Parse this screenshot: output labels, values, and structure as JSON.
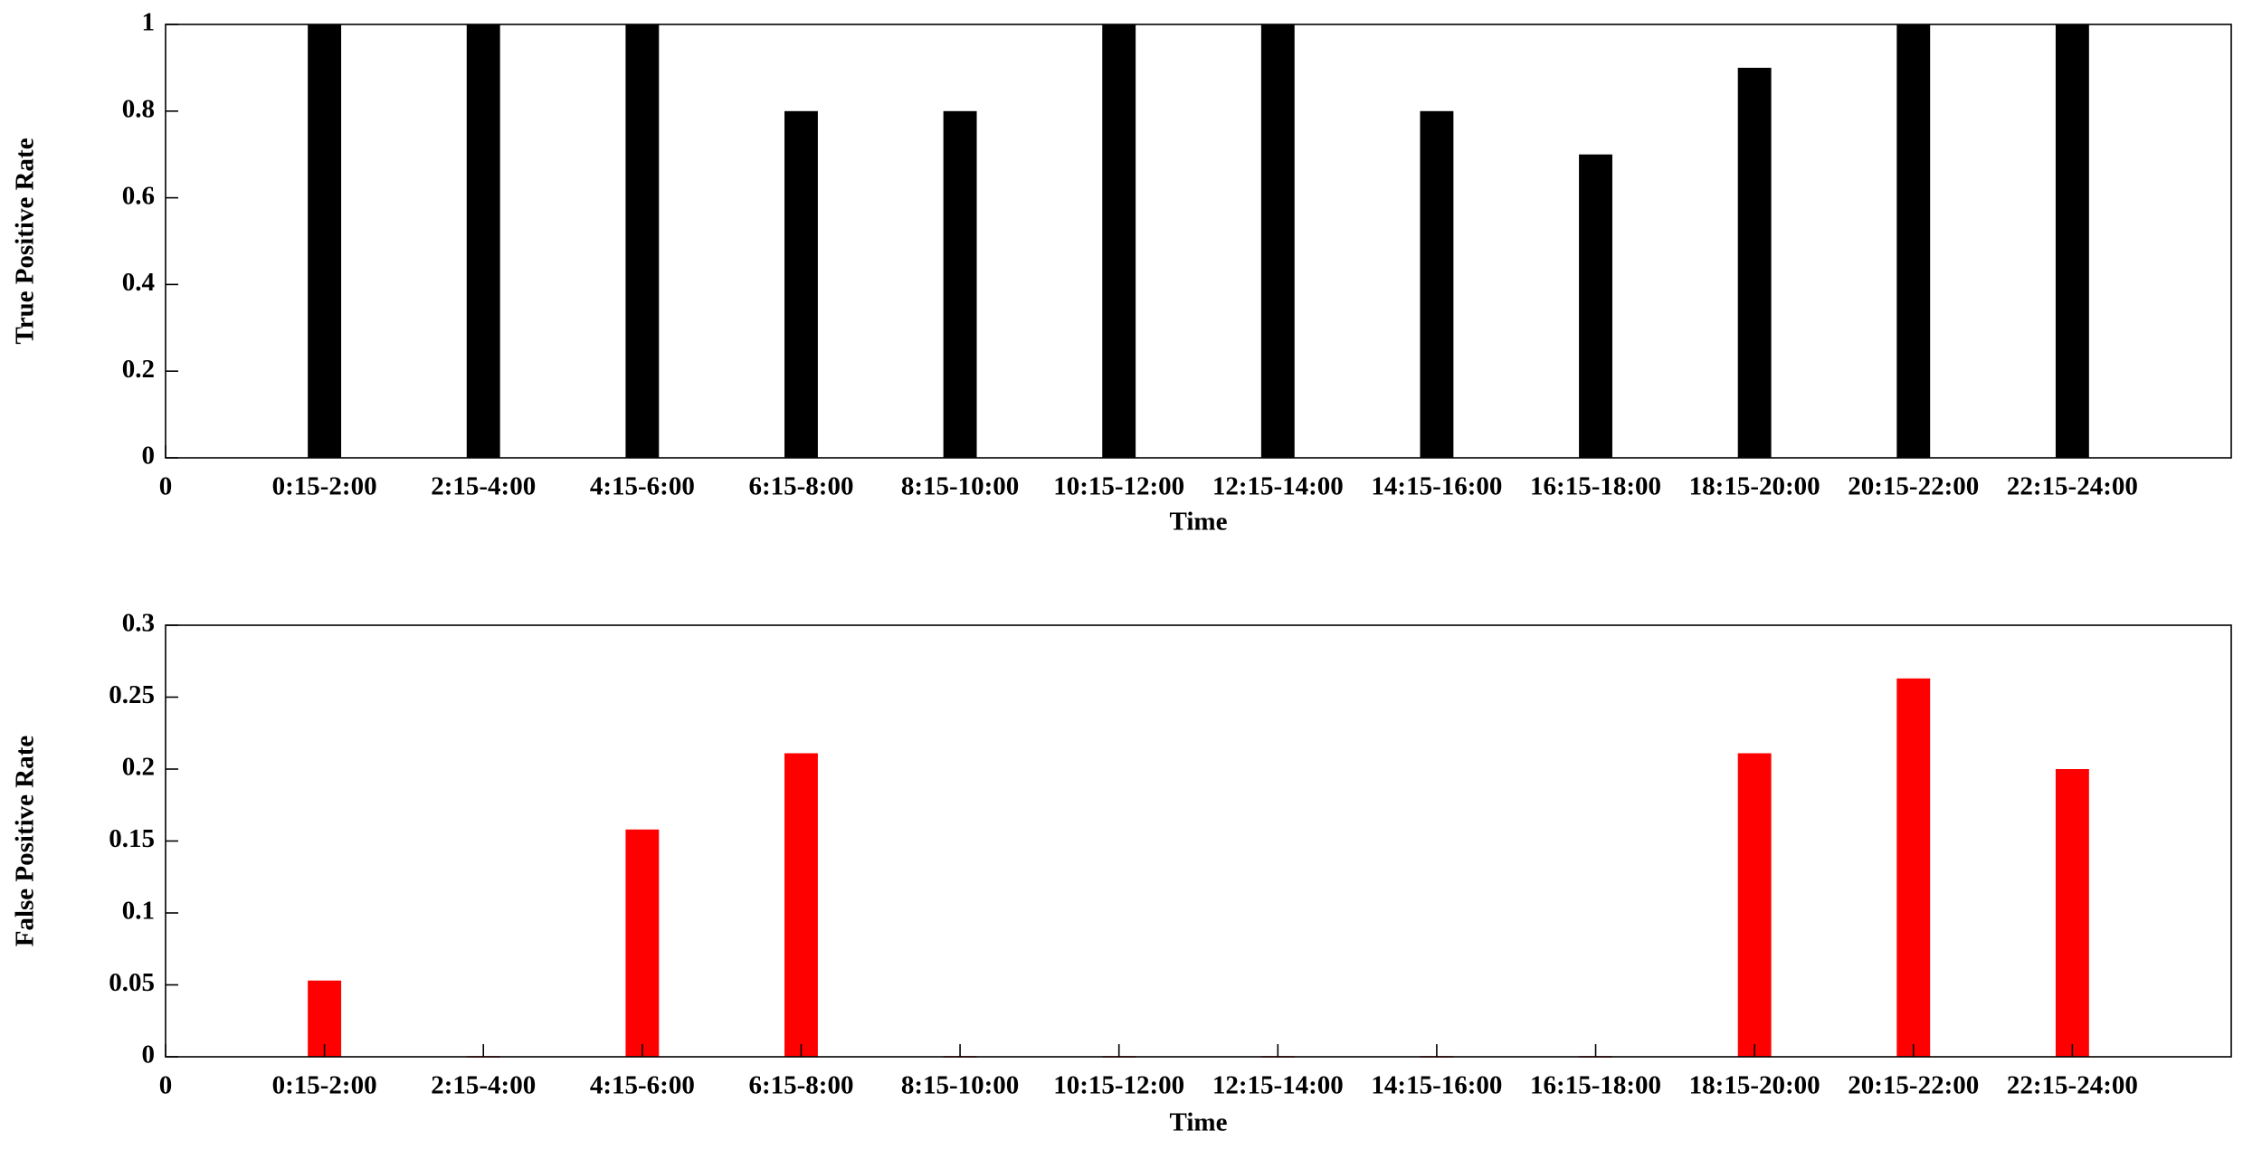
{
  "chart_data": [
    {
      "type": "bar",
      "color": "#000000",
      "xlabel": "Time",
      "ylabel": "True Positive Rate",
      "x": [
        1,
        2,
        3,
        4,
        5,
        6,
        7,
        8,
        9,
        10,
        11,
        12
      ],
      "values": [
        1,
        1,
        1,
        0.8,
        0.8,
        1,
        1,
        0.8,
        0.7,
        0.9,
        1,
        1
      ],
      "xlim": [
        0,
        13
      ],
      "ylim": [
        0,
        1
      ],
      "xticks": [
        0,
        {
          "value": 1,
          "label": "0:15-2:00"
        },
        {
          "value": 2,
          "label": "2:15-4:00"
        },
        {
          "value": 3,
          "label": "4:15-6:00"
        },
        {
          "value": 4,
          "label": "6:15-8:00"
        },
        {
          "value": 5,
          "label": "8:15-10:00"
        },
        {
          "value": 6,
          "label": "10:15-12:00"
        },
        {
          "value": 7,
          "label": "12:15-14:00"
        },
        {
          "value": 8,
          "label": "14:15-16:00"
        },
        {
          "value": 9,
          "label": "16:15-18:00"
        },
        {
          "value": 10,
          "label": "18:15-20:00"
        },
        {
          "value": 11,
          "label": "20:15-22:00"
        },
        {
          "value": 12,
          "label": "22:15-24:00"
        }
      ],
      "yticks": [
        0,
        0.2,
        0.4,
        0.6,
        0.8,
        1
      ]
    },
    {
      "type": "bar",
      "color": "#ff0000",
      "xlabel": "Time",
      "ylabel": "False Positive Rate",
      "x": [
        1,
        2,
        3,
        4,
        5,
        6,
        7,
        8,
        9,
        10,
        11,
        12
      ],
      "values": [
        0.053,
        0,
        0.158,
        0.211,
        0,
        0,
        0,
        0,
        0,
        0.211,
        0.263,
        0.2
      ],
      "xlim": [
        0,
        13
      ],
      "ylim": [
        0,
        0.3
      ],
      "xticks": [
        0,
        {
          "value": 1,
          "label": "0:15-2:00"
        },
        {
          "value": 2,
          "label": "2:15-4:00"
        },
        {
          "value": 3,
          "label": "4:15-6:00"
        },
        {
          "value": 4,
          "label": "6:15-8:00"
        },
        {
          "value": 5,
          "label": "8:15-10:00"
        },
        {
          "value": 6,
          "label": "10:15-12:00"
        },
        {
          "value": 7,
          "label": "12:15-14:00"
        },
        {
          "value": 8,
          "label": "14:15-16:00"
        },
        {
          "value": 9,
          "label": "16:15-18:00"
        },
        {
          "value": 10,
          "label": "18:15-20:00"
        },
        {
          "value": 11,
          "label": "20:15-22:00"
        },
        {
          "value": 12,
          "label": "22:15-24:00"
        }
      ],
      "yticks": [
        0,
        0.05,
        0.1,
        0.15,
        0.2,
        0.25,
        0.3
      ]
    }
  ]
}
